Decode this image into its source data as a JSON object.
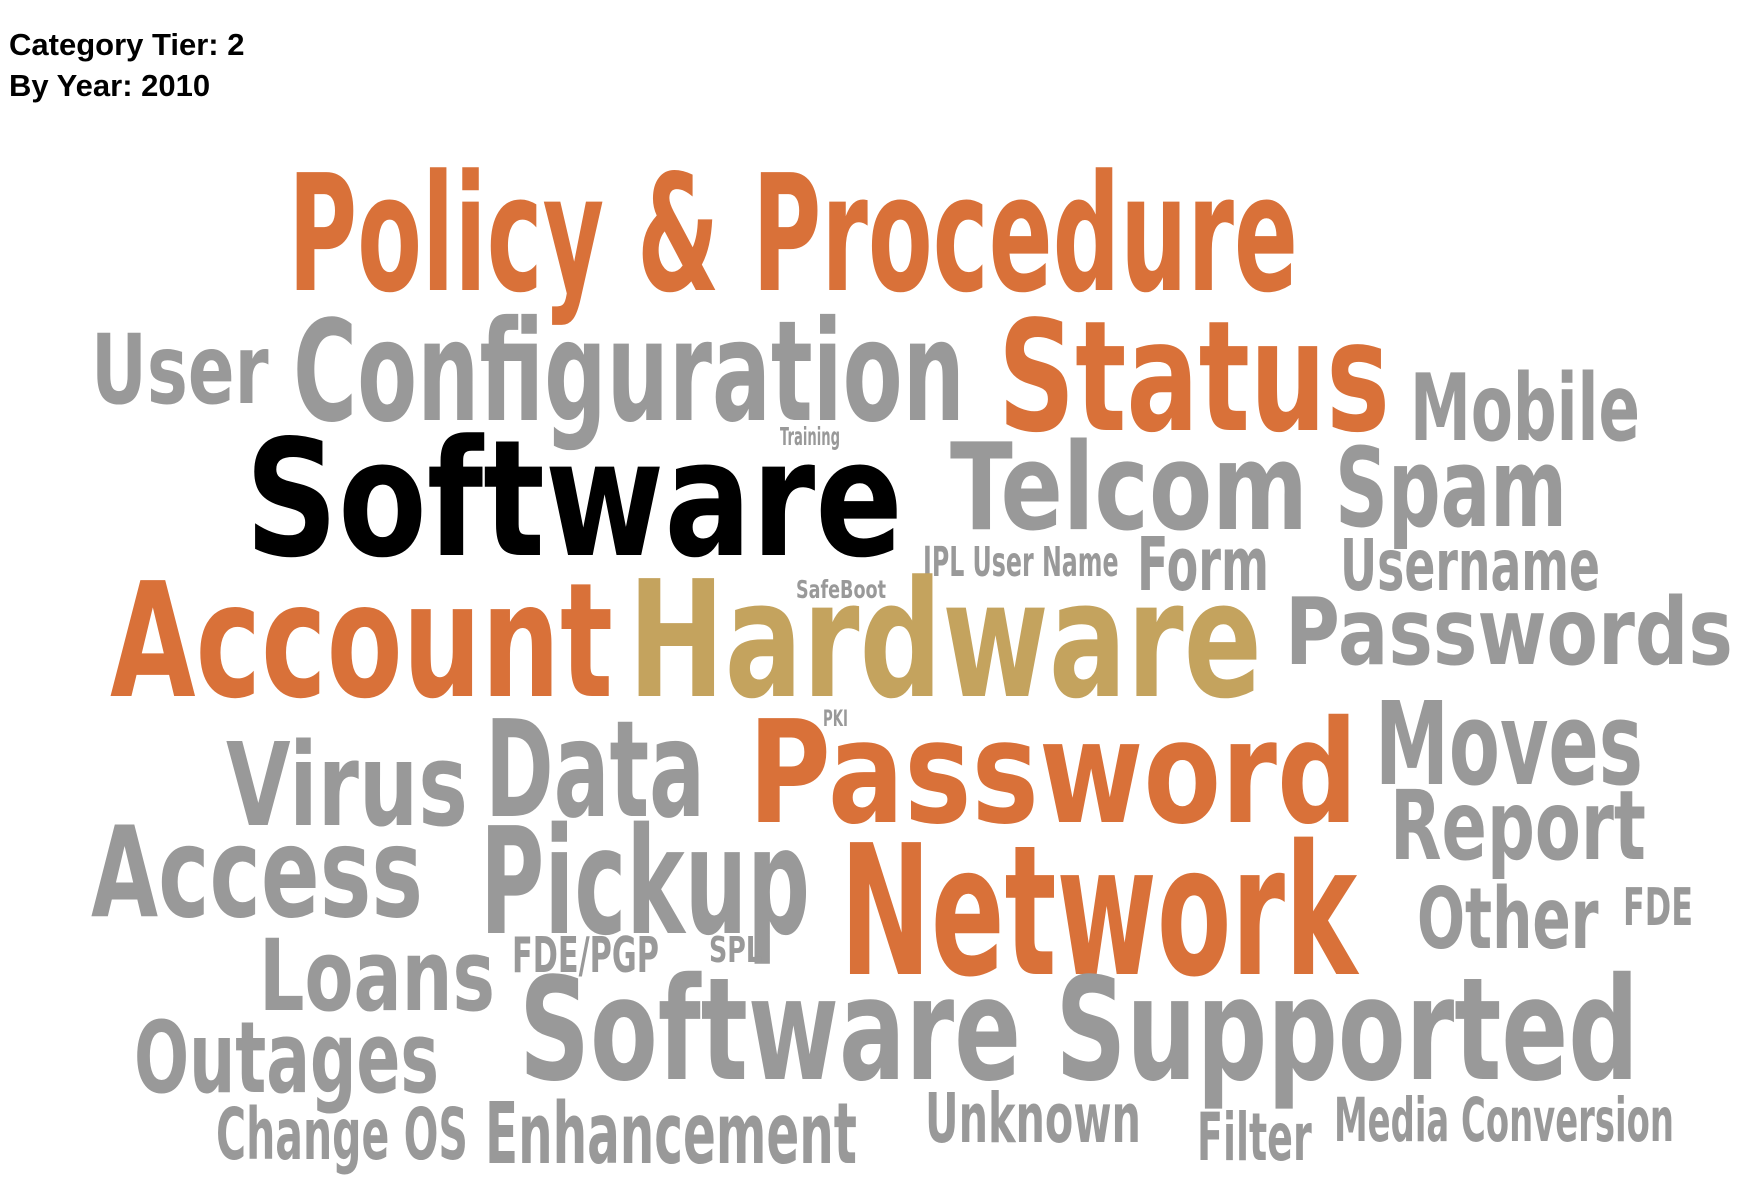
{
  "header": {
    "tier_label": "Category Tier: 2",
    "year_label": "By Year: 2010"
  },
  "colors": {
    "orange": "#d97139",
    "gray": "#999999",
    "black": "#000000",
    "tan": "#c4a35e"
  },
  "words": [
    {
      "text": "Policy & Procedure",
      "color": "orange"
    },
    {
      "text": "User",
      "color": "gray"
    },
    {
      "text": "Configuration",
      "color": "gray"
    },
    {
      "text": "Status",
      "color": "orange"
    },
    {
      "text": "Mobile",
      "color": "gray"
    },
    {
      "text": "Training",
      "color": "gray"
    },
    {
      "text": "Software",
      "color": "black"
    },
    {
      "text": "Telcom",
      "color": "gray"
    },
    {
      "text": "Spam",
      "color": "gray"
    },
    {
      "text": "JPL User Name",
      "color": "gray"
    },
    {
      "text": "Form",
      "color": "gray"
    },
    {
      "text": "Username",
      "color": "gray"
    },
    {
      "text": "SafeBoot",
      "color": "gray"
    },
    {
      "text": "Account",
      "color": "orange"
    },
    {
      "text": "Hardware",
      "color": "tan"
    },
    {
      "text": "Passwords",
      "color": "gray"
    },
    {
      "text": "PKI",
      "color": "gray"
    },
    {
      "text": "Data",
      "color": "gray"
    },
    {
      "text": "Moves",
      "color": "gray"
    },
    {
      "text": "Virus",
      "color": "gray"
    },
    {
      "text": "Password",
      "color": "orange"
    },
    {
      "text": "Report",
      "color": "gray"
    },
    {
      "text": "Access",
      "color": "gray"
    },
    {
      "text": "Pickup",
      "color": "gray"
    },
    {
      "text": "Network",
      "color": "orange"
    },
    {
      "text": "Other",
      "color": "gray"
    },
    {
      "text": "FDE",
      "color": "gray"
    },
    {
      "text": "FDE/PGP",
      "color": "gray"
    },
    {
      "text": "SPL",
      "color": "gray"
    },
    {
      "text": "Loans",
      "color": "gray"
    },
    {
      "text": "Software Supported",
      "color": "gray"
    },
    {
      "text": "Outages",
      "color": "gray"
    },
    {
      "text": "Unknown",
      "color": "gray"
    },
    {
      "text": "Media Conversion",
      "color": "gray"
    },
    {
      "text": "Change OS",
      "color": "gray"
    },
    {
      "text": "Enhancement",
      "color": "gray"
    },
    {
      "text": "Filter",
      "color": "gray"
    }
  ]
}
